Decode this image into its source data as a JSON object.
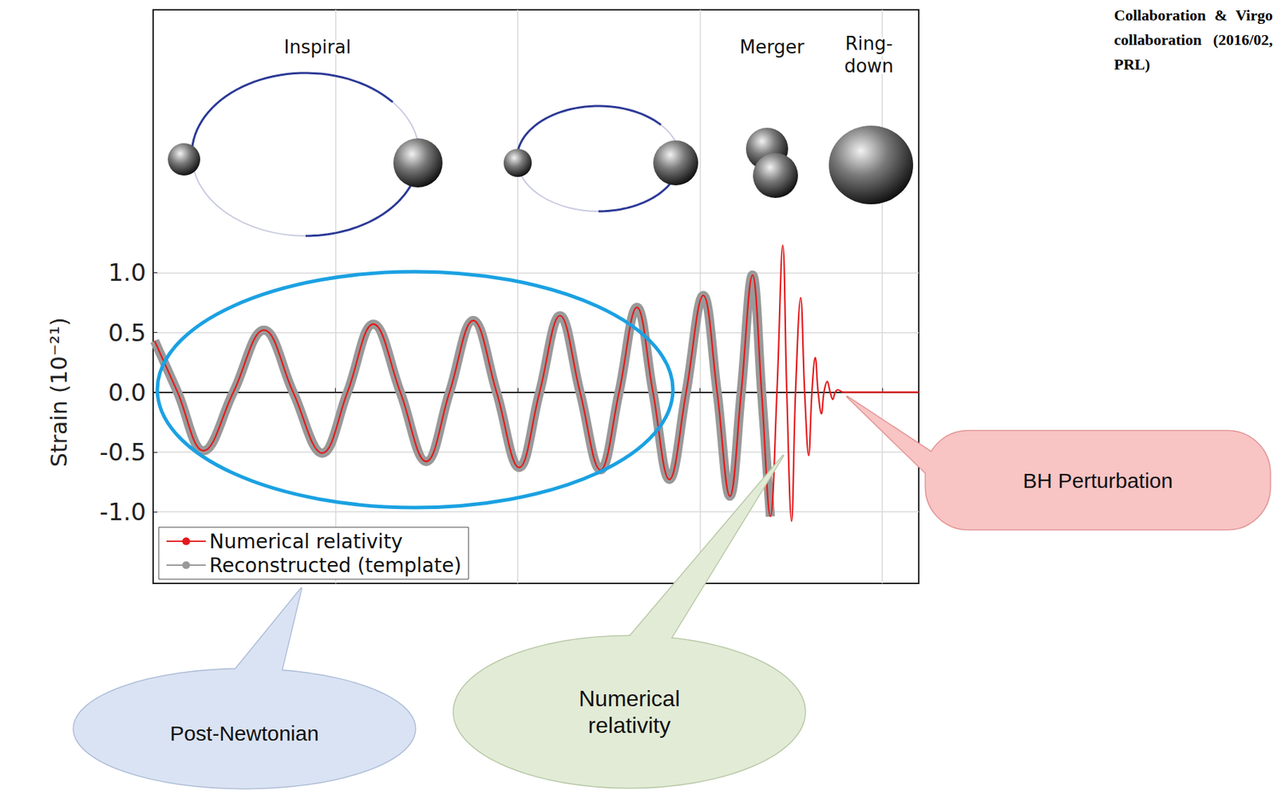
{
  "chart_data": {
    "type": "line",
    "x": [
      0.3004,
      0.3067,
      0.3138,
      0.322,
      0.3304,
      0.3384,
      0.3464,
      0.3533,
      0.3604,
      0.3678,
      0.3749,
      0.3813,
      0.3878,
      0.3942,
      0.4004,
      0.406,
      0.4116,
      0.4171,
      0.4227,
      0.4278,
      0.4327,
      0.4371,
      0.4416,
      0.4462,
      0.4509,
      0.4547,
      0.4582,
      0.4613,
      0.4644,
      0.4669,
      0.4693,
      0.4711,
      0.4727,
      0.4738,
      0.4751,
      0.4762,
      0.4776,
      0.4787,
      0.4798,
      0.4807,
      0.4816,
      0.4824,
      0.4833,
      0.484,
      0.4849,
      0.4857,
      0.4864,
      0.4871,
      0.4878,
      0.4893,
      0.51
    ],
    "series": [
      {
        "name": "Numerical relativity",
        "color": "#e41a1c",
        "line_style": "solid",
        "values": [
          0.43,
          0,
          -0.49,
          0,
          0.52,
          0,
          -0.51,
          0,
          0.57,
          0,
          -0.58,
          0,
          0.6,
          0,
          -0.63,
          0,
          0.64,
          0,
          -0.65,
          0,
          0.71,
          0,
          -0.73,
          0,
          0.81,
          0,
          -0.87,
          0,
          0.98,
          0,
          -1.04,
          0,
          1.23,
          0,
          -1.08,
          0,
          0.79,
          0,
          -0.53,
          0,
          0.29,
          0,
          -0.18,
          0,
          0.09,
          0,
          -0.06,
          0,
          0.02,
          0,
          0
        ]
      },
      {
        "name": "Reconstructed (template)",
        "color": "#999999",
        "line_style": "thick",
        "values": [
          0.43,
          0,
          -0.49,
          0,
          0.52,
          0,
          -0.51,
          0,
          0.57,
          0,
          -0.58,
          0,
          0.6,
          0,
          -0.63,
          0,
          0.64,
          0,
          -0.65,
          0,
          0.71,
          0,
          -0.73,
          0,
          0.81,
          0,
          -0.87,
          0,
          0.98,
          0,
          -1.04,
          null,
          null,
          null,
          null,
          null,
          null,
          null,
          null,
          null,
          null,
          null,
          null,
          null,
          null,
          null,
          null,
          null,
          null,
          null,
          null
        ]
      }
    ],
    "xlim": [
      0.3,
      0.51
    ],
    "xticks": [
      0.3,
      0.35,
      0.4,
      0.45,
      0.5
    ],
    "ylim": [
      -1.6,
      3.2
    ],
    "yticks": [
      {
        "value": -1,
        "label": "-1.0"
      },
      {
        "value": -0.5,
        "label": "-0.5"
      },
      {
        "value": 0,
        "label": "0.0"
      },
      {
        "value": 0.5,
        "label": "0.5"
      },
      {
        "value": 1,
        "label": "1.0"
      }
    ],
    "ylabel": "Strain (10⁻²¹)",
    "grid": true,
    "legend": "lower left",
    "tick_labels": "y",
    "phase_labels": [
      "Inspiral",
      "Merger",
      "Ring-down"
    ],
    "callouts": [
      "Post-Newtonian",
      "Numerical relativity",
      "BH Perturbation"
    ],
    "source": "Collaboration & Virgo collaboration (2016/02, PRL)"
  }
}
